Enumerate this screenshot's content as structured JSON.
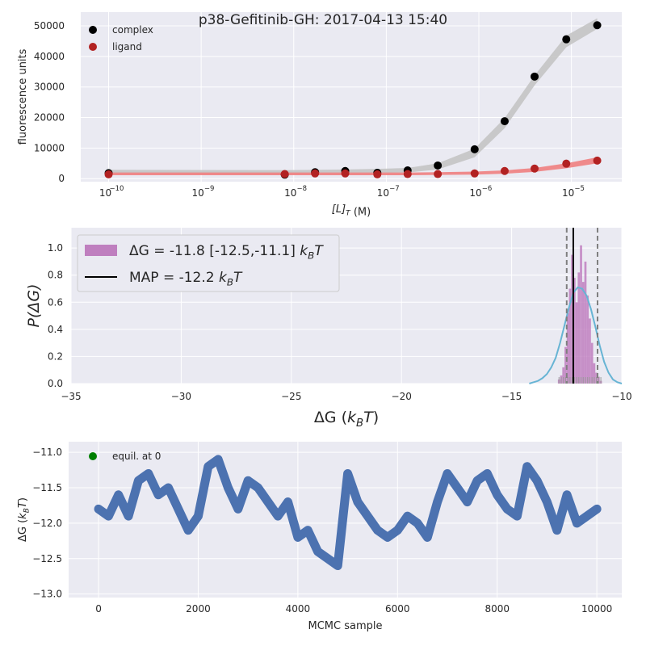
{
  "figure": {
    "title": "p38-Gefitinib-GH: 2017-04-13 15:40"
  },
  "colors": {
    "plot_bg": "#eaeaf2",
    "grid": "#ffffff",
    "complex": "#000000",
    "complex_band": "#c4c4c4",
    "ligand": "#b22222",
    "ligand_band": "#f08080",
    "hist_fill": "#bf7fbf",
    "kde": "#67b4d4",
    "map_line": "#000000",
    "ci_line": "#7f7f7f",
    "trace": "#4c72b0",
    "equil": "#008000"
  },
  "chart_data": [
    {
      "type": "scatter",
      "xlabel": "[L]_T (M)",
      "ylabel": "fluorescence units",
      "xscale": "log",
      "xlim": [
        5e-11,
        3.5e-05
      ],
      "ylim": [
        -1000,
        54500
      ],
      "xticks": [
        1e-10,
        1e-09,
        1e-08,
        1e-07,
        1e-06,
        1e-05
      ],
      "xtick_labels": [
        "10",
        "10",
        "10",
        "10",
        "10",
        "10"
      ],
      "xtick_exponents": [
        "−10",
        "−9",
        "−8",
        "−7",
        "−6",
        "−5"
      ],
      "yticks": [
        0,
        10000,
        20000,
        30000,
        40000,
        50000
      ],
      "ytick_labels": [
        "0",
        "10000",
        "20000",
        "30000",
        "40000",
        "50000"
      ],
      "grid": true,
      "legend": {
        "placement": "top-left",
        "entries": [
          "complex",
          "ligand"
        ]
      },
      "series": [
        {
          "name": "complex",
          "x": [
            1e-10,
            8e-09,
            1.7e-08,
            3.6e-08,
            8e-08,
            1.7e-07,
            3.6e-07,
            9e-07,
            1.9e-06,
            4e-06,
            8.8e-06,
            1.9e-05
          ],
          "y": [
            1800,
            1300,
            2100,
            2500,
            1900,
            2700,
            4300,
            9600,
            18800,
            33400,
            45600,
            50200
          ]
        },
        {
          "name": "ligand",
          "x": [
            1e-10,
            8e-09,
            1.7e-08,
            3.6e-08,
            8e-08,
            1.7e-07,
            3.6e-07,
            9e-07,
            1.9e-06,
            4e-06,
            8.8e-06,
            1.9e-05
          ],
          "y": [
            1400,
            1500,
            1700,
            1700,
            1400,
            1500,
            1500,
            1700,
            2500,
            3300,
            4900,
            5900
          ]
        }
      ],
      "bands": [
        {
          "series": "complex",
          "x": [
            1e-10,
            8e-09,
            1.7e-08,
            3.6e-08,
            8e-08,
            1.7e-07,
            3.6e-07,
            9e-07,
            1.9e-06,
            4e-06,
            8.8e-06,
            1.9e-05
          ],
          "lower": [
            1700,
            1600,
            1700,
            1700,
            1800,
            2000,
            3000,
            7000,
            16500,
            30500,
            43000,
            49000
          ],
          "upper": [
            2900,
            2800,
            2900,
            3000,
            3200,
            3500,
            5000,
            9800,
            19800,
            33800,
            46800,
            52500
          ]
        },
        {
          "series": "ligand",
          "x": [
            1e-10,
            8e-09,
            1.7e-08,
            3.6e-08,
            8e-08,
            1.7e-07,
            3.6e-07,
            9e-07,
            1.9e-06,
            4e-06,
            8.8e-06,
            1.9e-05
          ],
          "lower": [
            1100,
            1100,
            1100,
            1100,
            1100,
            1100,
            1200,
            1300,
            1600,
            2200,
            3400,
            5000
          ],
          "upper": [
            2000,
            2000,
            2000,
            2000,
            2000,
            2000,
            2100,
            2300,
            2700,
            3500,
            5000,
            7000
          ]
        }
      ]
    },
    {
      "type": "bar",
      "xlabel": "ΔG (k_BT)",
      "ylabel": "P(ΔG)",
      "xlim": [
        -35,
        -10
      ],
      "ylim": [
        0,
        1.15
      ],
      "xticks": [
        -35,
        -30,
        -25,
        -20,
        -15,
        -10
      ],
      "xtick_labels": [
        "−35",
        "−30",
        "−25",
        "−20",
        "−15",
        "−10"
      ],
      "yticks": [
        0,
        0.2,
        0.4,
        0.6,
        0.8,
        1.0
      ],
      "ytick_labels": [
        "0.0",
        "0.2",
        "0.4",
        "0.6",
        "0.8",
        "1.0"
      ],
      "grid": true,
      "legend": {
        "placement": "top-left",
        "entries": [
          "ΔG =  -11.8 [-12.5,-11.1] k_BT",
          "MAP = -12.2 k_BT"
        ]
      },
      "histogram": {
        "bin_centers": [
          -12.85,
          -12.75,
          -12.65,
          -12.55,
          -12.45,
          -12.35,
          -12.25,
          -12.15,
          -12.05,
          -11.95,
          -11.85,
          -11.75,
          -11.65,
          -11.55,
          -11.45,
          -11.35,
          -11.25,
          -11.15,
          -11.05,
          -10.95
        ],
        "heights": [
          0.03,
          0.06,
          0.12,
          0.27,
          0.52,
          0.7,
          0.95,
          0.78,
          0.6,
          0.82,
          1.02,
          0.75,
          0.9,
          0.65,
          0.48,
          0.3,
          0.15,
          0.08,
          0.05,
          0.02
        ]
      },
      "kde": {
        "x": [
          -14.2,
          -14.0,
          -13.8,
          -13.6,
          -13.4,
          -13.2,
          -13.0,
          -12.8,
          -12.6,
          -12.4,
          -12.2,
          -12.0,
          -11.8,
          -11.6,
          -11.4,
          -11.2,
          -11.0,
          -10.8,
          -10.6,
          -10.4,
          -10.2,
          -10.0
        ],
        "y": [
          0.0,
          0.01,
          0.02,
          0.04,
          0.07,
          0.12,
          0.19,
          0.3,
          0.43,
          0.56,
          0.67,
          0.71,
          0.7,
          0.65,
          0.55,
          0.42,
          0.28,
          0.16,
          0.08,
          0.03,
          0.01,
          0.0
        ]
      },
      "map": -12.2,
      "ci": [
        -12.5,
        -11.1
      ]
    },
    {
      "type": "line",
      "xlabel": "MCMC sample",
      "ylabel": "ΔG (k_BT)",
      "xlim": [
        -600,
        10500
      ],
      "ylim": [
        -13.05,
        -10.85
      ],
      "xticks": [
        0,
        2000,
        4000,
        6000,
        8000,
        10000
      ],
      "xtick_labels": [
        "0",
        "2000",
        "4000",
        "6000",
        "8000",
        "10000"
      ],
      "yticks": [
        -13.0,
        -12.5,
        -12.0,
        -11.5,
        -11.0
      ],
      "ytick_labels": [
        "−13.0",
        "−12.5",
        "−12.0",
        "−11.5",
        "−11.0"
      ],
      "grid": true,
      "legend": {
        "placement": "top-left",
        "entries": [
          "equil. at 0"
        ]
      },
      "series": [
        {
          "name": "equil. at 0",
          "x": [
            0,
            200,
            400,
            600,
            800,
            1000,
            1200,
            1400,
            1600,
            1800,
            2000,
            2200,
            2400,
            2600,
            2800,
            3000,
            3200,
            3400,
            3600,
            3800,
            4000,
            4200,
            4400,
            4600,
            4800,
            5000,
            5200,
            5400,
            5600,
            5800,
            6000,
            6200,
            6400,
            6600,
            6800,
            7000,
            7200,
            7400,
            7600,
            7800,
            8000,
            8200,
            8400,
            8600,
            8800,
            9000,
            9200,
            9400,
            9600,
            9800,
            10000
          ],
          "y": [
            -11.8,
            -11.9,
            -11.6,
            -11.9,
            -11.4,
            -11.3,
            -11.6,
            -11.5,
            -11.8,
            -12.1,
            -11.9,
            -11.2,
            -11.1,
            -11.5,
            -11.8,
            -11.4,
            -11.5,
            -11.7,
            -11.9,
            -11.7,
            -12.2,
            -12.1,
            -12.4,
            -12.5,
            -12.6,
            -11.3,
            -11.7,
            -11.9,
            -12.1,
            -12.2,
            -12.1,
            -11.9,
            -12.0,
            -12.2,
            -11.7,
            -11.3,
            -11.5,
            -11.7,
            -11.4,
            -11.3,
            -11.6,
            -11.8,
            -11.9,
            -11.2,
            -11.4,
            -11.7,
            -12.1,
            -11.6,
            -12.0,
            -11.9,
            -11.8
          ]
        }
      ]
    }
  ]
}
